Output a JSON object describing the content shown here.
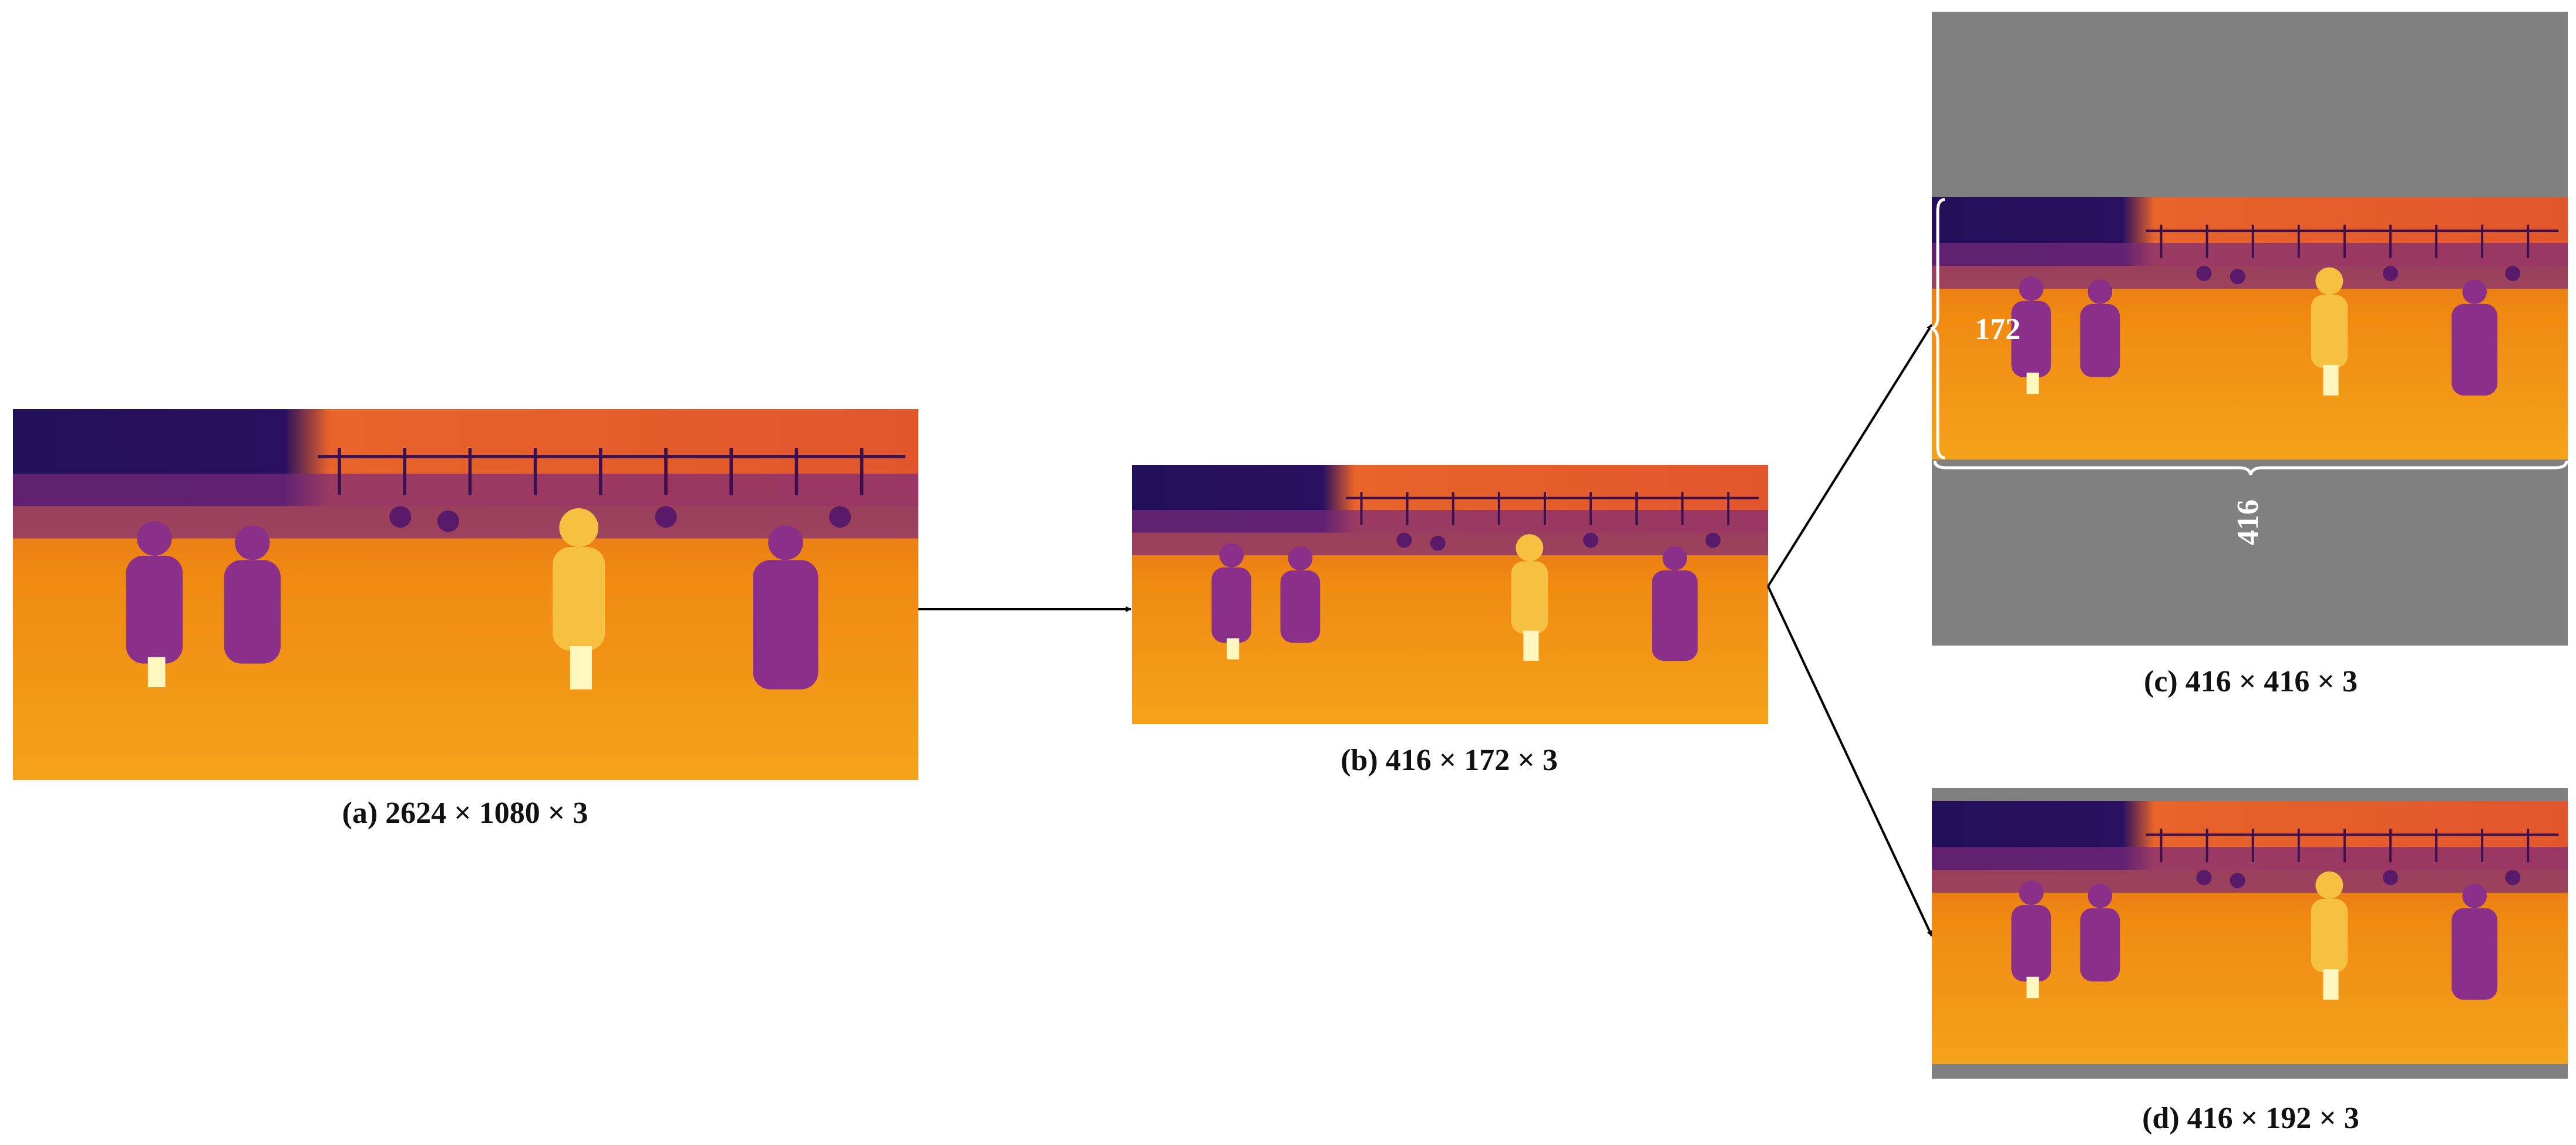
{
  "captions": {
    "a": "(a) 2624 × 1080 × 3",
    "b": "(b) 416 × 172 × 3",
    "c": "(c) 416 × 416 × 3",
    "d": "(d) 416 × 192 × 3"
  },
  "annotations": {
    "height": "172",
    "width": "416"
  }
}
